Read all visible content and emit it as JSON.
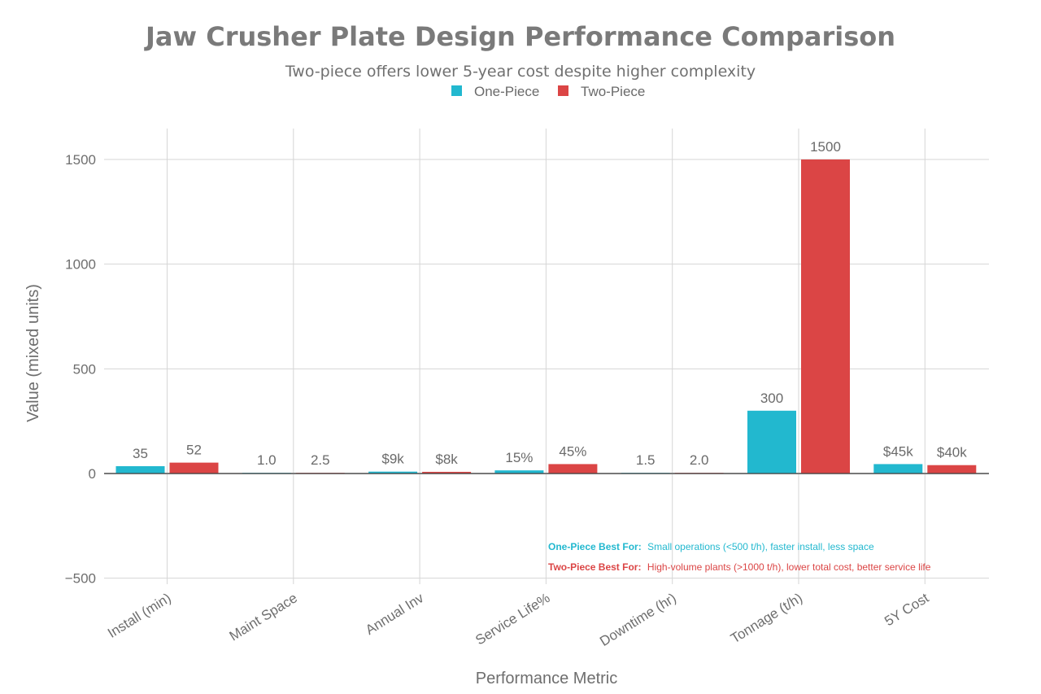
{
  "chart_data": {
    "type": "bar",
    "title": "Jaw Crusher Plate Design Performance Comparison",
    "subtitle": "Two-piece offers lower 5-year cost despite higher complexity",
    "xlabel": "Performance Metric",
    "ylabel": "Value (mixed units)",
    "ylim": [
      -500,
      1650
    ],
    "yticks": [
      -500,
      0,
      500,
      1000,
      1500
    ],
    "ytick_labels": [
      "−500",
      "0",
      "500",
      "1000",
      "1500"
    ],
    "grid": true,
    "legend_position": "top-center",
    "categories": [
      "Install (min)",
      "Maint Space",
      "Annual Inv",
      "Service Life%",
      "Downtime (hr)",
      "Tonnage (t/h)",
      "5Y Cost"
    ],
    "series": [
      {
        "name": "One-Piece",
        "color": "#22b8cf",
        "values": [
          35,
          1.0,
          9,
          15,
          1.5,
          300,
          45
        ],
        "labels": [
          "35",
          "1.0",
          "$9k",
          "15%",
          "1.5",
          "300",
          "$45k"
        ]
      },
      {
        "name": "Two-Piece",
        "color": "#db4545",
        "values": [
          52,
          2.5,
          8,
          45,
          2.0,
          1500,
          40
        ],
        "labels": [
          "52",
          "2.5",
          "$8k",
          "45%",
          "2.0",
          "1500",
          "$40k"
        ]
      }
    ],
    "annotations": [
      {
        "label": "One-Piece Best For:",
        "text": "Small operations (<500 t/h), faster install, less space",
        "color": "#22b8cf"
      },
      {
        "label": "Two-Piece Best For:",
        "text": "High-volume plants (>1000 t/h), lower total cost, better service life",
        "color": "#db4545"
      }
    ]
  }
}
